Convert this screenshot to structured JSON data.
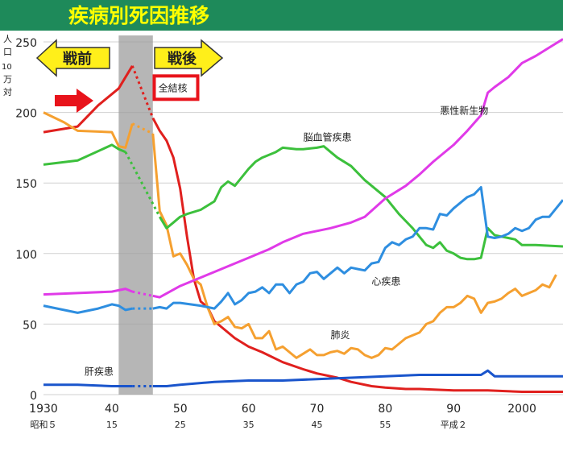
{
  "chart_data": {
    "type": "line",
    "title": "疾病別死因推移",
    "ylabel": "人口10万対",
    "ylim": [
      0,
      250
    ],
    "xlim": [
      1930,
      2006
    ],
    "grid": true,
    "x_ticks": [
      {
        "x": 1930,
        "label": "1930",
        "sub": "昭和５"
      },
      {
        "x": 1940,
        "label": "40",
        "sub": "15"
      },
      {
        "x": 1950,
        "label": "50",
        "sub": "25"
      },
      {
        "x": 1960,
        "label": "60",
        "sub": "35"
      },
      {
        "x": 1970,
        "label": "70",
        "sub": "45"
      },
      {
        "x": 1980,
        "label": "80",
        "sub": "55"
      },
      {
        "x": 1990,
        "label": "90",
        "sub": "平成２"
      },
      {
        "x": 2000,
        "label": "2000",
        "sub": ""
      }
    ],
    "y_ticks": [
      0,
      50,
      100,
      150,
      200,
      250
    ],
    "shaded_period": [
      1941,
      1946
    ],
    "era_labels": {
      "prewar": "戦前",
      "postwar": "戦後"
    },
    "highlight_label": "全結核",
    "colors": {
      "tuberculosis": "#e0201e",
      "pneumonia": "#f5a030",
      "cerebrovascular": "#3cc03c",
      "cancer": "#e03ae8",
      "heart": "#2e8ee0",
      "liver": "#1a55cc",
      "header": "#1e8a5a",
      "title_text": "#ffff00",
      "shade": "#9e9e9e",
      "arrow": "#ffef1a",
      "grid": "#d0d0d0"
    },
    "series": [
      {
        "key": "tuberculosis",
        "name": "全結核",
        "points": [
          [
            1930,
            186
          ],
          [
            1935,
            190
          ],
          [
            1938,
            205
          ],
          [
            1940,
            213
          ],
          [
            1941,
            217
          ],
          [
            1942,
            225
          ],
          [
            1943,
            233
          ],
          [
            1946,
            196
          ],
          [
            1947,
            187
          ],
          [
            1948,
            180
          ],
          [
            1949,
            168
          ],
          [
            1950,
            146
          ],
          [
            1951,
            112
          ],
          [
            1952,
            82
          ],
          [
            1953,
            66
          ],
          [
            1954,
            62
          ],
          [
            1955,
            52
          ],
          [
            1956,
            48
          ],
          [
            1958,
            40
          ],
          [
            1960,
            34
          ],
          [
            1962,
            30
          ],
          [
            1965,
            23
          ],
          [
            1968,
            18
          ],
          [
            1970,
            15
          ],
          [
            1973,
            12
          ],
          [
            1975,
            9
          ],
          [
            1978,
            6
          ],
          [
            1980,
            5
          ],
          [
            1983,
            4
          ],
          [
            1985,
            4
          ],
          [
            1990,
            3
          ],
          [
            1995,
            3
          ],
          [
            2000,
            2
          ],
          [
            2006,
            2
          ]
        ],
        "gap": [
          1943,
          1946
        ]
      },
      {
        "key": "pneumonia",
        "name": "肺炎",
        "points": [
          [
            1930,
            200
          ],
          [
            1933,
            193
          ],
          [
            1935,
            187
          ],
          [
            1940,
            186
          ],
          [
            1941,
            176
          ],
          [
            1942,
            175
          ],
          [
            1943,
            192
          ],
          [
            1946,
            185
          ],
          [
            1947,
            130
          ],
          [
            1948,
            120
          ],
          [
            1949,
            98
          ],
          [
            1950,
            100
          ],
          [
            1951,
            92
          ],
          [
            1952,
            82
          ],
          [
            1953,
            78
          ],
          [
            1954,
            62
          ],
          [
            1955,
            50
          ],
          [
            1956,
            52
          ],
          [
            1957,
            55
          ],
          [
            1958,
            48
          ],
          [
            1959,
            47
          ],
          [
            1960,
            50
          ],
          [
            1961,
            40
          ],
          [
            1962,
            40
          ],
          [
            1963,
            45
          ],
          [
            1964,
            32
          ],
          [
            1965,
            34
          ],
          [
            1966,
            30
          ],
          [
            1967,
            26
          ],
          [
            1968,
            29
          ],
          [
            1969,
            32
          ],
          [
            1970,
            28
          ],
          [
            1971,
            28
          ],
          [
            1972,
            30
          ],
          [
            1973,
            31
          ],
          [
            1974,
            29
          ],
          [
            1975,
            33
          ],
          [
            1976,
            32
          ],
          [
            1977,
            28
          ],
          [
            1978,
            26
          ],
          [
            1979,
            28
          ],
          [
            1980,
            33
          ],
          [
            1981,
            32
          ],
          [
            1982,
            36
          ],
          [
            1983,
            40
          ],
          [
            1984,
            42
          ],
          [
            1985,
            44
          ],
          [
            1986,
            50
          ],
          [
            1987,
            52
          ],
          [
            1988,
            58
          ],
          [
            1989,
            62
          ],
          [
            1990,
            62
          ],
          [
            1991,
            65
          ],
          [
            1992,
            70
          ],
          [
            1993,
            68
          ],
          [
            1994,
            58
          ],
          [
            1995,
            65
          ],
          [
            1996,
            66
          ],
          [
            1997,
            68
          ],
          [
            1998,
            72
          ],
          [
            1999,
            75
          ],
          [
            2000,
            70
          ],
          [
            2001,
            72
          ],
          [
            2002,
            74
          ],
          [
            2003,
            78
          ],
          [
            2004,
            76
          ],
          [
            2005,
            85
          ]
        ],
        "gap": [
          1943,
          1946
        ]
      },
      {
        "key": "cerebrovascular",
        "name": "脳血管疾患",
        "points": [
          [
            1930,
            163
          ],
          [
            1935,
            166
          ],
          [
            1940,
            177
          ],
          [
            1941,
            174
          ],
          [
            1942,
            172
          ],
          [
            1947,
            126
          ],
          [
            1948,
            118
          ],
          [
            1949,
            122
          ],
          [
            1950,
            126
          ],
          [
            1951,
            128
          ],
          [
            1953,
            131
          ],
          [
            1955,
            137
          ],
          [
            1956,
            147
          ],
          [
            1957,
            151
          ],
          [
            1958,
            148
          ],
          [
            1960,
            160
          ],
          [
            1961,
            165
          ],
          [
            1962,
            168
          ],
          [
            1963,
            170
          ],
          [
            1964,
            172
          ],
          [
            1965,
            175
          ],
          [
            1967,
            174
          ],
          [
            1968,
            174
          ],
          [
            1970,
            175
          ],
          [
            1971,
            176
          ],
          [
            1972,
            172
          ],
          [
            1973,
            168
          ],
          [
            1975,
            162
          ],
          [
            1977,
            152
          ],
          [
            1978,
            148
          ],
          [
            1980,
            140
          ],
          [
            1982,
            128
          ],
          [
            1984,
            118
          ],
          [
            1985,
            112
          ],
          [
            1986,
            106
          ],
          [
            1987,
            104
          ],
          [
            1988,
            108
          ],
          [
            1989,
            102
          ],
          [
            1990,
            100
          ],
          [
            1991,
            97
          ],
          [
            1992,
            96
          ],
          [
            1993,
            96
          ],
          [
            1994,
            97
          ],
          [
            1995,
            118
          ],
          [
            1996,
            113
          ],
          [
            1997,
            112
          ],
          [
            1998,
            111
          ],
          [
            1999,
            110
          ],
          [
            2000,
            106
          ],
          [
            2002,
            106
          ],
          [
            2006,
            105
          ]
        ],
        "gap": [
          1942,
          1947
        ]
      },
      {
        "key": "cancer",
        "name": "悪性新生物",
        "points": [
          [
            1930,
            71
          ],
          [
            1935,
            72
          ],
          [
            1940,
            73
          ],
          [
            1942,
            75
          ],
          [
            1943,
            73
          ],
          [
            1946,
            70
          ],
          [
            1947,
            69
          ],
          [
            1950,
            77
          ],
          [
            1952,
            81
          ],
          [
            1955,
            87
          ],
          [
            1957,
            91
          ],
          [
            1960,
            97
          ],
          [
            1963,
            103
          ],
          [
            1965,
            108
          ],
          [
            1968,
            114
          ],
          [
            1970,
            116
          ],
          [
            1972,
            118
          ],
          [
            1975,
            122
          ],
          [
            1977,
            126
          ],
          [
            1980,
            139
          ],
          [
            1983,
            148
          ],
          [
            1985,
            156
          ],
          [
            1987,
            165
          ],
          [
            1990,
            177
          ],
          [
            1992,
            187
          ],
          [
            1994,
            198
          ],
          [
            1995,
            214
          ],
          [
            1996,
            218
          ],
          [
            1998,
            225
          ],
          [
            2000,
            235
          ],
          [
            2002,
            240
          ],
          [
            2004,
            246
          ],
          [
            2006,
            252
          ]
        ],
        "gap": [
          1943,
          1946
        ]
      },
      {
        "key": "heart",
        "name": "心疾患",
        "points": [
          [
            1930,
            63
          ],
          [
            1932,
            61
          ],
          [
            1935,
            58
          ],
          [
            1938,
            61
          ],
          [
            1940,
            64
          ],
          [
            1941,
            63
          ],
          [
            1942,
            60
          ],
          [
            1943,
            61
          ],
          [
            1946,
            61
          ],
          [
            1947,
            62
          ],
          [
            1948,
            61
          ],
          [
            1949,
            65
          ],
          [
            1950,
            65
          ],
          [
            1953,
            63
          ],
          [
            1955,
            61
          ],
          [
            1956,
            66
          ],
          [
            1957,
            72
          ],
          [
            1958,
            64
          ],
          [
            1959,
            67
          ],
          [
            1960,
            72
          ],
          [
            1961,
            73
          ],
          [
            1962,
            76
          ],
          [
            1963,
            72
          ],
          [
            1964,
            78
          ],
          [
            1965,
            78
          ],
          [
            1966,
            72
          ],
          [
            1967,
            78
          ],
          [
            1968,
            80
          ],
          [
            1969,
            86
          ],
          [
            1970,
            87
          ],
          [
            1971,
            82
          ],
          [
            1972,
            86
          ],
          [
            1973,
            90
          ],
          [
            1974,
            86
          ],
          [
            1975,
            90
          ],
          [
            1976,
            89
          ],
          [
            1977,
            88
          ],
          [
            1978,
            93
          ],
          [
            1979,
            94
          ],
          [
            1980,
            104
          ],
          [
            1981,
            108
          ],
          [
            1982,
            106
          ],
          [
            1983,
            110
          ],
          [
            1984,
            112
          ],
          [
            1985,
            118
          ],
          [
            1986,
            118
          ],
          [
            1987,
            117
          ],
          [
            1988,
            128
          ],
          [
            1989,
            127
          ],
          [
            1990,
            132
          ],
          [
            1991,
            136
          ],
          [
            1992,
            140
          ],
          [
            1993,
            142
          ],
          [
            1994,
            147
          ],
          [
            1995,
            112
          ],
          [
            1996,
            111
          ],
          [
            1997,
            112
          ],
          [
            1998,
            114
          ],
          [
            1999,
            118
          ],
          [
            2000,
            116
          ],
          [
            2001,
            118
          ],
          [
            2002,
            124
          ],
          [
            2003,
            126
          ],
          [
            2004,
            126
          ],
          [
            2005,
            132
          ],
          [
            2006,
            138
          ]
        ],
        "gap": [
          1943,
          1946
        ]
      },
      {
        "key": "liver",
        "name": "肝疾患",
        "points": [
          [
            1930,
            7
          ],
          [
            1935,
            7
          ],
          [
            1940,
            6
          ],
          [
            1941,
            6
          ],
          [
            1943,
            6
          ],
          [
            1946,
            6
          ],
          [
            1948,
            6
          ],
          [
            1950,
            7
          ],
          [
            1955,
            9
          ],
          [
            1960,
            10
          ],
          [
            1965,
            10
          ],
          [
            1970,
            11
          ],
          [
            1975,
            12
          ],
          [
            1980,
            13
          ],
          [
            1985,
            14
          ],
          [
            1990,
            14
          ],
          [
            1994,
            14
          ],
          [
            1995,
            17
          ],
          [
            1996,
            13
          ],
          [
            2000,
            13
          ],
          [
            2006,
            13
          ]
        ],
        "gap": [
          1943,
          1946
        ]
      }
    ],
    "series_labels": [
      {
        "key": "tuberculosis",
        "text": "全結核",
        "x": 1946.8,
        "y": 215
      },
      {
        "key": "cancer",
        "text": "悪性新生物",
        "x": 1988,
        "y": 199
      },
      {
        "key": "cerebrovascular",
        "text": "脳血管疾患",
        "x": 1968,
        "y": 180
      },
      {
        "key": "heart",
        "text": "心疾患",
        "x": 1978,
        "y": 78
      },
      {
        "key": "pneumonia",
        "text": "肺炎",
        "x": 1972,
        "y": 40
      },
      {
        "key": "liver",
        "text": "肝疾患",
        "x": 1936,
        "y": 14
      }
    ]
  }
}
